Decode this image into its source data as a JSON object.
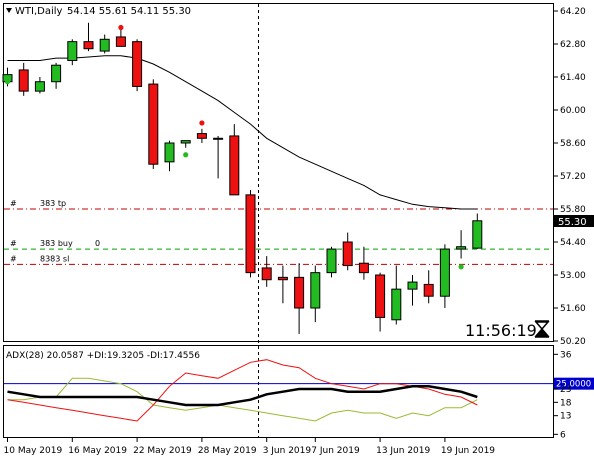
{
  "header": {
    "symbol_label": "WTI,Daily",
    "ohlc": "54.14 55.61 54.11 55.30"
  },
  "clock": {
    "time": "11:56:19",
    "hourglass_icon": "hourglass-icon"
  },
  "order_lines": [
    {
      "marker": "#",
      "label": "383 tp",
      "price": 55.8,
      "color": "#c00000",
      "style": "dash-dot"
    },
    {
      "marker": "#",
      "label": "383 buy",
      "extra": "0",
      "price": 54.1,
      "color": "#00a000",
      "style": "dash"
    },
    {
      "marker": "#",
      "label": "8383 sl",
      "price": 53.45,
      "color": "#c00000",
      "style": "dash-dot"
    }
  ],
  "current_price_label": "55.30",
  "indicator": {
    "label": "ADX(28) 20.0587 +DI:19.3205 -DI:17.4556",
    "level": 25,
    "level_label": "25.0000",
    "y_ticks": [
      "36",
      "23",
      "18",
      "13",
      "6"
    ]
  },
  "colors": {
    "bull": "#22bb22",
    "bear": "#ee1111",
    "adx": "#000000",
    "plus_di": "#99bb33",
    "minus_di": "#ee1111",
    "ma": "#000000",
    "level": "#0000cc",
    "tp_line": "#c00000",
    "buy_line": "#00a000"
  },
  "chart_data": {
    "type": "candlestick",
    "title": "WTI,Daily",
    "price_axis_ticks": [
      "64.20",
      "62.80",
      "61.40",
      "60.00",
      "58.60",
      "57.20",
      "55.80",
      "54.40",
      "53.00",
      "51.60",
      "50.20"
    ],
    "ylim": [
      50.2,
      64.2
    ],
    "x_tick_labels": [
      "10 May 2019",
      "16 May 2019",
      "22 May 2019",
      "28 May 2019",
      "3 Jun 2019",
      "7 Jun 2019",
      "13 Jun 2019",
      "19 Jun 2019"
    ],
    "x_tick_index": [
      0,
      4,
      8,
      12,
      16,
      19,
      23,
      27
    ],
    "candles": [
      {
        "o": 61.2,
        "h": 61.8,
        "l": 61.0,
        "c": 61.5
      },
      {
        "o": 61.7,
        "h": 62.0,
        "l": 60.6,
        "c": 60.8
      },
      {
        "o": 60.8,
        "h": 61.4,
        "l": 60.7,
        "c": 61.2
      },
      {
        "o": 61.2,
        "h": 62.0,
        "l": 60.9,
        "c": 61.9
      },
      {
        "o": 62.1,
        "h": 63.0,
        "l": 61.9,
        "c": 62.9
      },
      {
        "o": 62.9,
        "h": 63.7,
        "l": 62.5,
        "c": 62.6
      },
      {
        "o": 62.5,
        "h": 63.2,
        "l": 62.4,
        "c": 63.0
      },
      {
        "o": 63.1,
        "h": 63.6,
        "l": 62.8,
        "c": 62.7
      },
      {
        "o": 62.9,
        "h": 63.0,
        "l": 60.8,
        "c": 61.0
      },
      {
        "o": 61.1,
        "h": 61.3,
        "l": 57.5,
        "c": 57.7
      },
      {
        "o": 57.8,
        "h": 58.7,
        "l": 57.4,
        "c": 58.6
      },
      {
        "o": 58.6,
        "h": 58.7,
        "l": 58.4,
        "c": 58.7
      },
      {
        "o": 59.0,
        "h": 59.2,
        "l": 58.6,
        "c": 58.8
      },
      {
        "o": 58.8,
        "h": 58.9,
        "l": 57.1,
        "c": 58.8
      },
      {
        "o": 58.9,
        "h": 59.4,
        "l": 56.4,
        "c": 56.4
      },
      {
        "o": 56.4,
        "h": 56.6,
        "l": 52.9,
        "c": 53.1
      },
      {
        "o": 53.3,
        "h": 53.8,
        "l": 52.5,
        "c": 52.8
      },
      {
        "o": 52.9,
        "h": 53.4,
        "l": 51.8,
        "c": 52.8
      },
      {
        "o": 52.9,
        "h": 53.5,
        "l": 50.5,
        "c": 51.6
      },
      {
        "o": 51.6,
        "h": 53.4,
        "l": 51.0,
        "c": 53.1
      },
      {
        "o": 53.1,
        "h": 54.2,
        "l": 52.9,
        "c": 54.1
      },
      {
        "o": 54.4,
        "h": 54.8,
        "l": 53.2,
        "c": 53.4
      },
      {
        "o": 53.5,
        "h": 54.2,
        "l": 52.8,
        "c": 53.1
      },
      {
        "o": 53.0,
        "h": 53.1,
        "l": 50.6,
        "c": 51.2
      },
      {
        "o": 51.1,
        "h": 53.4,
        "l": 50.9,
        "c": 52.4
      },
      {
        "o": 52.4,
        "h": 53.0,
        "l": 51.7,
        "c": 52.7
      },
      {
        "o": 52.6,
        "h": 53.2,
        "l": 51.8,
        "c": 52.1
      },
      {
        "o": 52.1,
        "h": 54.3,
        "l": 51.6,
        "c": 54.1
      },
      {
        "o": 54.1,
        "h": 54.9,
        "l": 53.7,
        "c": 54.2
      },
      {
        "o": 54.14,
        "h": 55.61,
        "l": 54.11,
        "c": 55.3
      }
    ],
    "ma": [
      62.1,
      62.1,
      62.1,
      62.2,
      62.2,
      62.25,
      62.3,
      62.3,
      62.2,
      61.95,
      61.6,
      61.2,
      60.8,
      60.4,
      59.9,
      59.4,
      58.8,
      58.4,
      58.0,
      57.7,
      57.4,
      57.1,
      56.8,
      56.4,
      56.2,
      56.0,
      55.9,
      55.85,
      55.8,
      55.8
    ],
    "fractals": [
      {
        "i": 0,
        "price": 61.2,
        "type": "down"
      },
      {
        "i": 7,
        "price": 63.5,
        "type": "up"
      },
      {
        "i": 11,
        "price": 58.1,
        "type": "down"
      },
      {
        "i": 12,
        "price": 59.45,
        "type": "up"
      },
      {
        "i": 28,
        "price": 53.35,
        "type": "down"
      }
    ],
    "adx": [
      22,
      21,
      20,
      20,
      20,
      20,
      20,
      20,
      20,
      19,
      18,
      17,
      17,
      17,
      18,
      19,
      21,
      22,
      23,
      23,
      23,
      22,
      22,
      22,
      23,
      24,
      24,
      23,
      22,
      20
    ],
    "plus_di": [
      19,
      19,
      20,
      20,
      27,
      27,
      26,
      25,
      22,
      17,
      16,
      15,
      16,
      17,
      16,
      15,
      14,
      13,
      12,
      11,
      14,
      15,
      14,
      14,
      12,
      14,
      13,
      16,
      16,
      19
    ],
    "minus_di": [
      19,
      18,
      17,
      16,
      15,
      14,
      13,
      12,
      11,
      17,
      24,
      29,
      28,
      27,
      30,
      33,
      34,
      32,
      31,
      27,
      25,
      24,
      23,
      25,
      25,
      24,
      23,
      21,
      20,
      17
    ],
    "indicator_ylim": [
      5,
      38
    ]
  }
}
